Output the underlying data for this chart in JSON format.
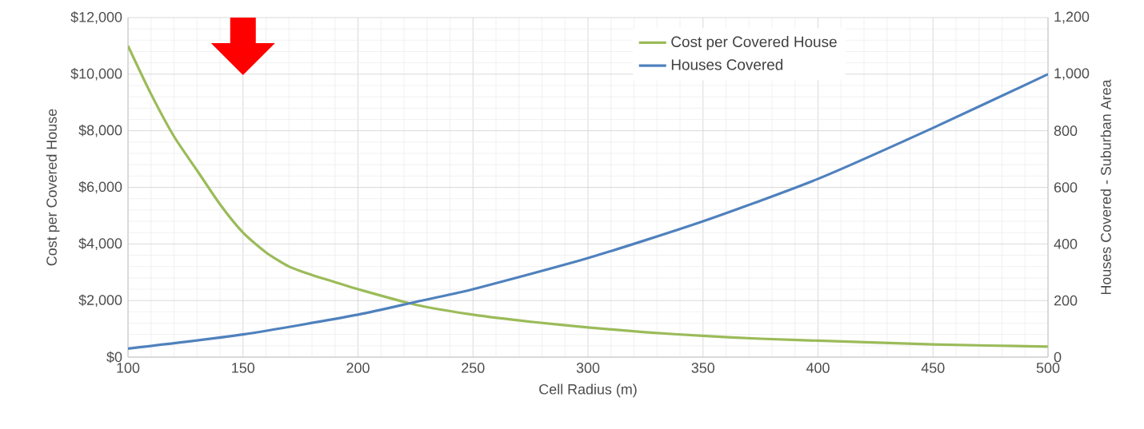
{
  "chart_data": {
    "type": "line",
    "xlabel": "Cell Radius (m)",
    "ylabel": "Cost per Covered House",
    "y2label": "Houses Covered - Suburban Area",
    "xlim": [
      100,
      500
    ],
    "xticks": [
      100,
      150,
      200,
      250,
      300,
      350,
      400,
      450,
      500
    ],
    "ylim": [
      0,
      12000
    ],
    "yticks": [
      {
        "value": 0,
        "label": "$0"
      },
      {
        "value": 2000,
        "label": "$2,000"
      },
      {
        "value": 4000,
        "label": "$4,000"
      },
      {
        "value": 6000,
        "label": "$6,000"
      },
      {
        "value": 8000,
        "label": "$8,000"
      },
      {
        "value": 10000,
        "label": "$10,000"
      },
      {
        "value": 12000,
        "label": "$12,000"
      }
    ],
    "y2lim": [
      0,
      1200
    ],
    "y2ticks": [
      0,
      200,
      400,
      600,
      800,
      {
        "value": 1000,
        "label": "1,000"
      },
      {
        "value": 1200,
        "label": "1,200"
      }
    ],
    "grid": true,
    "legend": "top right",
    "marker": "none",
    "line_style": "solid",
    "series": [
      {
        "name": "Cost per Covered House",
        "color": "#9bbb59",
        "x": [
          100,
          110,
          120,
          130,
          140,
          150,
          160,
          170,
          180,
          190,
          200,
          225,
          250,
          275,
          300,
          325,
          350,
          375,
          400,
          450,
          500
        ],
        "values": [
          11000,
          9300,
          7800,
          6600,
          5400,
          4400,
          3700,
          3200,
          2900,
          2650,
          2400,
          1850,
          1500,
          1250,
          1050,
          880,
          750,
          650,
          580,
          450,
          370
        ]
      },
      {
        "name": "Houses Covered",
        "color": "#4f81bd",
        "axis": "y2",
        "x": [
          100,
          150,
          200,
          225,
          250,
          300,
          350,
          400,
          450,
          500
        ],
        "values": [
          30,
          80,
          150,
          195,
          240,
          350,
          480,
          630,
          810,
          1000
        ]
      }
    ]
  }
}
